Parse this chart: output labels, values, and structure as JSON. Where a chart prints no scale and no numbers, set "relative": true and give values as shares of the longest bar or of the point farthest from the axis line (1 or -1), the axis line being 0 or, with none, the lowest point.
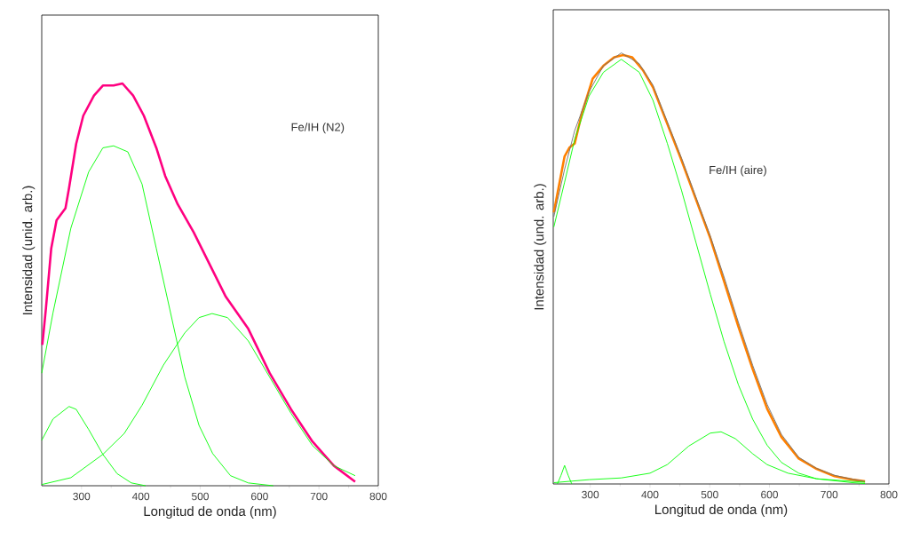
{
  "chart_data": [
    {
      "type": "line",
      "relative": true,
      "xlabel": "Longitud de onda (nm)",
      "ylabel": "Intensidad (unid. arb.)",
      "xlim": [
        233,
        800
      ],
      "xticks": [
        300,
        400,
        500,
        600,
        700,
        800
      ],
      "annotations": [
        "Fe/IH (N2)"
      ],
      "series": [
        {
          "color": "#ff0080",
          "x": [
            234,
            240,
            249,
            258,
            273,
            279,
            291,
            303,
            321,
            336,
            354,
            369,
            387,
            405,
            426,
            441,
            462,
            489,
            516,
            543,
            581,
            617,
            653,
            689,
            725,
            761
          ],
          "values": [
            0.35,
            0.44,
            0.59,
            0.66,
            0.69,
            0.74,
            0.85,
            0.92,
            0.97,
            0.995,
            0.995,
            1.0,
            0.97,
            0.92,
            0.84,
            0.77,
            0.7,
            0.63,
            0.55,
            0.47,
            0.39,
            0.28,
            0.19,
            0.11,
            0.05,
            0.01
          ]
        },
        {
          "color": "#00ff00",
          "x": [
            233,
            252,
            282,
            312,
            336,
            354,
            378,
            402,
            426,
            450,
            474,
            498,
            521,
            551,
            581,
            623
          ],
          "values": [
            0.28,
            0.43,
            0.64,
            0.78,
            0.84,
            0.845,
            0.83,
            0.75,
            0.59,
            0.43,
            0.27,
            0.15,
            0.08,
            0.025,
            0.007,
            0.0
          ]
        },
        {
          "color": "#00ff00",
          "x": [
            233,
            252,
            279,
            291,
            312,
            336,
            360,
            384,
            408
          ],
          "values": [
            0.113,
            0.166,
            0.197,
            0.19,
            0.14,
            0.078,
            0.03,
            0.007,
            0.0
          ]
        },
        {
          "color": "#00ff00",
          "x": [
            233,
            282,
            336,
            372,
            402,
            438,
            474,
            498,
            520,
            546,
            581,
            617,
            653,
            689,
            725,
            761
          ],
          "values": [
            0.003,
            0.02,
            0.078,
            0.13,
            0.2,
            0.3,
            0.38,
            0.418,
            0.428,
            0.418,
            0.36,
            0.27,
            0.18,
            0.1,
            0.05,
            0.025
          ]
        }
      ]
    },
    {
      "type": "line",
      "relative": true,
      "xlabel": "Longitud de onda (nm)",
      "ylabel": "Intensidad (und. arb.)",
      "xlim": [
        238,
        800
      ],
      "xticks": [
        300,
        400,
        500,
        600,
        700,
        800
      ],
      "annotations": [
        "Fe/IH (aire)"
      ],
      "series": [
        {
          "color": "#ff8000",
          "x": [
            239,
            248,
            257,
            265,
            274,
            286,
            304,
            322,
            340,
            355,
            370,
            388,
            405,
            429,
            453,
            477,
            501,
            524,
            548,
            572,
            596,
            620,
            649,
            679,
            709,
            739,
            760
          ],
          "values": [
            0.63,
            0.695,
            0.76,
            0.78,
            0.79,
            0.86,
            0.94,
            0.97,
            0.99,
            0.995,
            0.99,
            0.96,
            0.92,
            0.835,
            0.75,
            0.66,
            0.57,
            0.47,
            0.365,
            0.266,
            0.175,
            0.109,
            0.059,
            0.035,
            0.018,
            0.01,
            0.006
          ]
        },
        {
          "color": "#707070",
          "x": [
            239,
            257,
            274,
            298,
            322,
            352,
            382,
            405,
            429,
            453,
            477,
            501,
            524,
            548,
            572,
            596,
            620,
            649,
            679,
            709,
            739,
            760
          ],
          "values": [
            0.62,
            0.73,
            0.82,
            0.91,
            0.97,
            1.0,
            0.975,
            0.925,
            0.84,
            0.755,
            0.665,
            0.575,
            0.48,
            0.375,
            0.275,
            0.185,
            0.115,
            0.062,
            0.036,
            0.02,
            0.011,
            0.006
          ]
        },
        {
          "color": "#00ff00",
          "x": [
            239,
            257,
            274,
            298,
            322,
            352,
            382,
            405,
            429,
            453,
            477,
            501,
            524,
            548,
            572,
            596,
            620,
            649,
            679,
            739,
            760
          ],
          "values": [
            0.596,
            0.7,
            0.8,
            0.9,
            0.955,
            0.985,
            0.955,
            0.89,
            0.79,
            0.68,
            0.56,
            0.44,
            0.33,
            0.23,
            0.15,
            0.09,
            0.05,
            0.025,
            0.012,
            0.003,
            0.001
          ]
        },
        {
          "color": "#00ff00",
          "x": [
            239,
            298,
            352,
            400,
            429,
            465,
            501,
            519,
            543,
            572,
            596,
            631,
            679,
            760
          ],
          "values": [
            0.003,
            0.01,
            0.014,
            0.025,
            0.045,
            0.088,
            0.118,
            0.121,
            0.105,
            0.07,
            0.045,
            0.025,
            0.012,
            0.004
          ]
        },
        {
          "color": "#00ff00",
          "x": [
            245,
            251,
            257,
            263,
            269
          ],
          "values": [
            0.0,
            0.02,
            0.043,
            0.02,
            0.0
          ]
        }
      ]
    }
  ]
}
